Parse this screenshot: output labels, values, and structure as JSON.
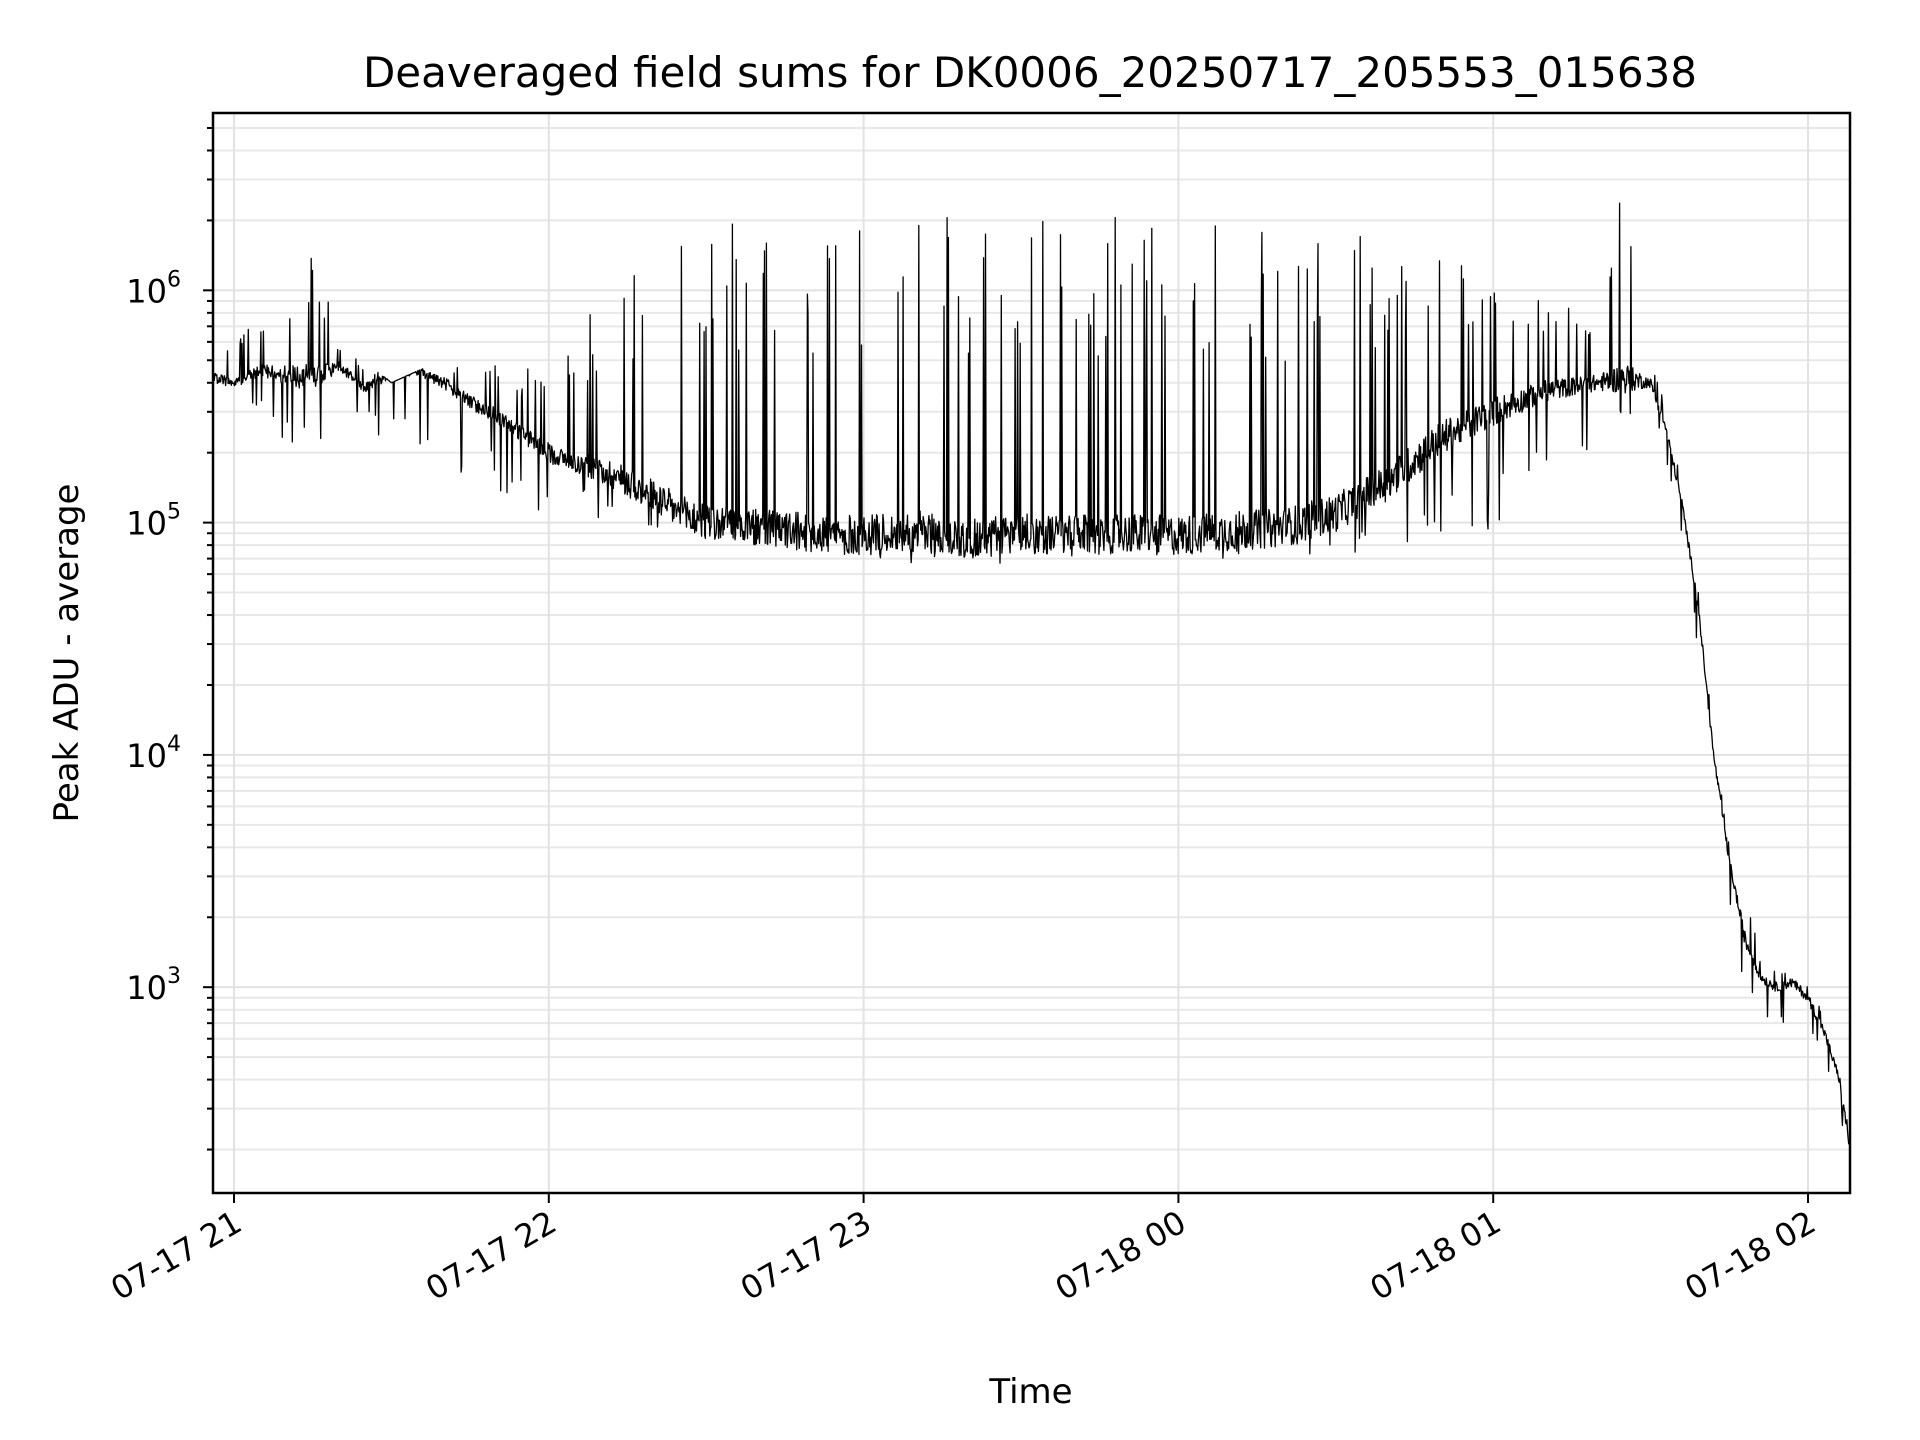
{
  "chart_data": {
    "type": "line",
    "title": "Deaveraged field sums for DK0006_20250717_205553_015638",
    "xlabel": "Time",
    "ylabel": "Peak ADU - average",
    "xscale": "time",
    "yscale": "log",
    "xlim": [
      "2025-07-17 20:56",
      "2025-07-18 02:08"
    ],
    "ylim": [
      130,
      5800000
    ],
    "grid": true,
    "x_ticks": [
      {
        "value": "2025-07-17 21:00",
        "label": "07-17 21"
      },
      {
        "value": "2025-07-17 22:00",
        "label": "07-17 22"
      },
      {
        "value": "2025-07-17 23:00",
        "label": "07-17 23"
      },
      {
        "value": "2025-07-18 00:00",
        "label": "07-18 00"
      },
      {
        "value": "2025-07-18 01:00",
        "label": "07-18 01"
      },
      {
        "value": "2025-07-18 02:00",
        "label": "07-18 02"
      }
    ],
    "y_ticks": [
      {
        "value": 1000,
        "base": "10",
        "exp": "3"
      },
      {
        "value": 10000,
        "base": "10",
        "exp": "4"
      },
      {
        "value": 100000,
        "base": "10",
        "exp": "5"
      },
      {
        "value": 1000000,
        "base": "10",
        "exp": "6"
      }
    ],
    "series_color": "#000000",
    "series": [
      {
        "x": [
          "2025-07-17 20:56",
          "2025-07-17 21:00",
          "2025-07-17 21:05",
          "2025-07-17 21:10",
          "2025-07-17 21:15",
          "2025-07-17 21:20",
          "2025-07-17 21:25",
          "2025-07-17 21:30",
          "2025-07-17 21:35",
          "2025-07-17 21:40",
          "2025-07-17 21:45",
          "2025-07-17 21:50",
          "2025-07-17 21:55",
          "2025-07-17 22:00",
          "2025-07-17 22:05",
          "2025-07-17 22:10",
          "2025-07-17 22:15",
          "2025-07-17 22:20",
          "2025-07-17 22:25",
          "2025-07-17 22:30",
          "2025-07-17 22:40",
          "2025-07-17 22:50",
          "2025-07-17 23:00",
          "2025-07-17 23:10",
          "2025-07-17 23:20",
          "2025-07-17 23:30",
          "2025-07-17 23:40",
          "2025-07-17 23:50",
          "2025-07-18 00:00",
          "2025-07-18 00:10",
          "2025-07-18 00:20",
          "2025-07-18 00:30",
          "2025-07-18 00:40",
          "2025-07-18 00:50",
          "2025-07-18 01:00",
          "2025-07-18 01:10",
          "2025-07-18 01:20",
          "2025-07-18 01:25",
          "2025-07-18 01:30",
          "2025-07-18 01:33",
          "2025-07-18 01:36",
          "2025-07-18 01:39",
          "2025-07-18 01:42",
          "2025-07-18 01:45",
          "2025-07-18 01:48",
          "2025-07-18 01:51",
          "2025-07-18 01:54",
          "2025-07-18 01:57",
          "2025-07-18 02:00",
          "2025-07-18 02:03",
          "2025-07-18 02:06",
          "2025-07-18 02:08"
        ],
        "y": [
          420000,
          400000,
          450000,
          430000,
          420000,
          470000,
          380000,
          440000,
          450000,
          400000,
          330000,
          290000,
          240000,
          200000,
          180000,
          170000,
          150000,
          130000,
          110000,
          100000,
          95000,
          90000,
          88000,
          92000,
          85000,
          90000,
          88000,
          90000,
          88000,
          92000,
          95000,
          110000,
          150000,
          230000,
          300000,
          370000,
          400000,
          420000,
          400000,
          250000,
          120000,
          45000,
          10000,
          3500,
          1600,
          1100,
          1000,
          1050,
          900,
          650,
          400,
          200
        ],
        "max": [
          600000,
          700000,
          800000,
          1000000,
          1600000,
          600000,
          500000,
          400000,
          450000,
          500000,
          500000,
          500000,
          450000,
          500000,
          600000,
          1000000,
          1300000,
          1600000,
          1800000,
          1900000,
          2000000,
          2100000,
          2100000,
          2100000,
          2100000,
          2100000,
          2100000,
          2100000,
          2100000,
          2000000,
          1900000,
          1800000,
          1700000,
          1500000,
          1000000,
          900000,
          800000,
          3500000,
          550000,
          300000,
          150000,
          55000,
          12000,
          4000,
          3500,
          1300,
          1200,
          1200,
          1000,
          800,
          500,
          220
        ],
        "min": [
          320000,
          300000,
          280000,
          200000,
          150000,
          300000,
          250000,
          220000,
          200000,
          180000,
          150000,
          140000,
          120000,
          90000,
          130000,
          100000,
          100000,
          90000,
          85000,
          80000,
          80000,
          75000,
          70000,
          65000,
          55000,
          70000,
          70000,
          72000,
          70000,
          68000,
          70000,
          72000,
          75000,
          80000,
          90000,
          150000,
          200000,
          250000,
          280000,
          180000,
          80000,
          25000,
          6000,
          2000,
          900,
          700,
          700,
          700,
          600,
          450,
          280,
          180
        ]
      }
    ]
  }
}
